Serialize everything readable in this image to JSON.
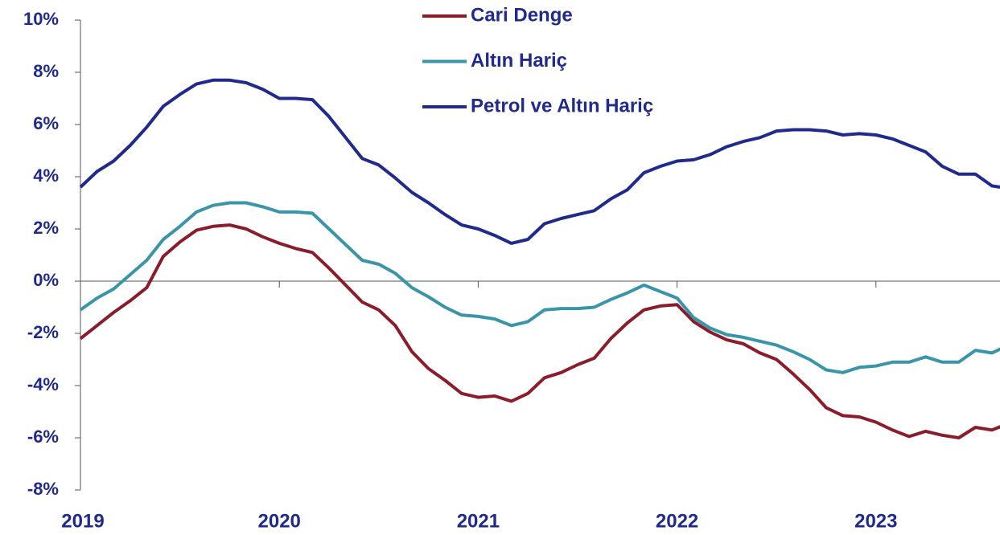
{
  "chart_data": {
    "type": "line",
    "categories": [
      "2019",
      null,
      null,
      null,
      null,
      null,
      null,
      null,
      null,
      null,
      null,
      null,
      "2020",
      null,
      null,
      null,
      null,
      null,
      null,
      null,
      null,
      null,
      null,
      null,
      "2021",
      null,
      null,
      null,
      null,
      null,
      null,
      null,
      null,
      null,
      null,
      null,
      "2022",
      null,
      null,
      null,
      null,
      null,
      null,
      null,
      null,
      null,
      null,
      null,
      "2023",
      null,
      null,
      null,
      null,
      null,
      null,
      null,
      null
    ],
    "series": [
      {
        "name": "Cari Denge",
        "color": "#8b1c2c",
        "values": [
          -2.2,
          -1.7,
          -1.2,
          -0.75,
          -0.25,
          0.95,
          1.5,
          1.95,
          2.1,
          2.15,
          2.0,
          1.7,
          1.45,
          1.25,
          1.1,
          0.5,
          -0.15,
          -0.8,
          -1.1,
          -1.7,
          -2.7,
          -3.35,
          -3.8,
          -4.3,
          -4.45,
          -4.4,
          -4.6,
          -4.3,
          -3.7,
          -3.5,
          -3.2,
          -2.95,
          -2.2,
          -1.6,
          -1.1,
          -0.95,
          -0.9,
          -1.55,
          -1.95,
          -2.25,
          -2.4,
          -2.75,
          -3.0,
          -3.55,
          -4.15,
          -4.85,
          -5.15,
          -5.2,
          -5.4,
          -5.7,
          -5.95,
          -5.75,
          -5.9,
          -6.0,
          -5.6,
          -5.7,
          -5.45
        ]
      },
      {
        "name": "Altın Hariç",
        "color": "#3a95a8",
        "values": [
          -1.1,
          -0.65,
          -0.3,
          0.25,
          0.8,
          1.6,
          2.1,
          2.65,
          2.9,
          3.0,
          3.0,
          2.85,
          2.65,
          2.65,
          2.6,
          2.0,
          1.4,
          0.8,
          0.65,
          0.3,
          -0.25,
          -0.6,
          -1.0,
          -1.3,
          -1.35,
          -1.45,
          -1.7,
          -1.55,
          -1.1,
          -1.05,
          -1.05,
          -1.0,
          -0.7,
          -0.45,
          -0.15,
          -0.4,
          -0.65,
          -1.4,
          -1.8,
          -2.05,
          -2.15,
          -2.3,
          -2.45,
          -2.7,
          -3.0,
          -3.4,
          -3.5,
          -3.3,
          -3.25,
          -3.1,
          -3.1,
          -2.9,
          -3.1,
          -3.1,
          -2.65,
          -2.75,
          -2.45
        ]
      },
      {
        "name": "Petrol ve Altın Hariç",
        "color": "#1f2a8c",
        "values": [
          3.6,
          4.2,
          4.6,
          5.2,
          5.9,
          6.7,
          7.15,
          7.55,
          7.7,
          7.7,
          7.6,
          7.35,
          7.0,
          7.0,
          6.95,
          6.3,
          5.5,
          4.7,
          4.45,
          3.95,
          3.4,
          3.0,
          2.55,
          2.15,
          2.0,
          1.75,
          1.45,
          1.6,
          2.2,
          2.4,
          2.55,
          2.7,
          3.15,
          3.5,
          4.15,
          4.4,
          4.6,
          4.65,
          4.85,
          5.15,
          5.35,
          5.5,
          5.75,
          5.8,
          5.8,
          5.75,
          5.6,
          5.65,
          5.6,
          5.45,
          5.2,
          4.95,
          4.4,
          4.1,
          4.1,
          3.65,
          3.55
        ]
      }
    ],
    "ylim": [
      -8,
      10
    ],
    "yticks": [
      {
        "value": -8,
        "label": "-8%"
      },
      {
        "value": -6,
        "label": "-6%"
      },
      {
        "value": -4,
        "label": "-4%"
      },
      {
        "value": -2,
        "label": "-2%"
      },
      {
        "value": 0,
        "label": "0%"
      },
      {
        "value": 2,
        "label": "2%"
      },
      {
        "value": 4,
        "label": "4%"
      },
      {
        "value": 6,
        "label": "6%"
      },
      {
        "value": 8,
        "label": "8%"
      },
      {
        "value": 10,
        "label": "10%"
      }
    ],
    "legend": "top"
  }
}
